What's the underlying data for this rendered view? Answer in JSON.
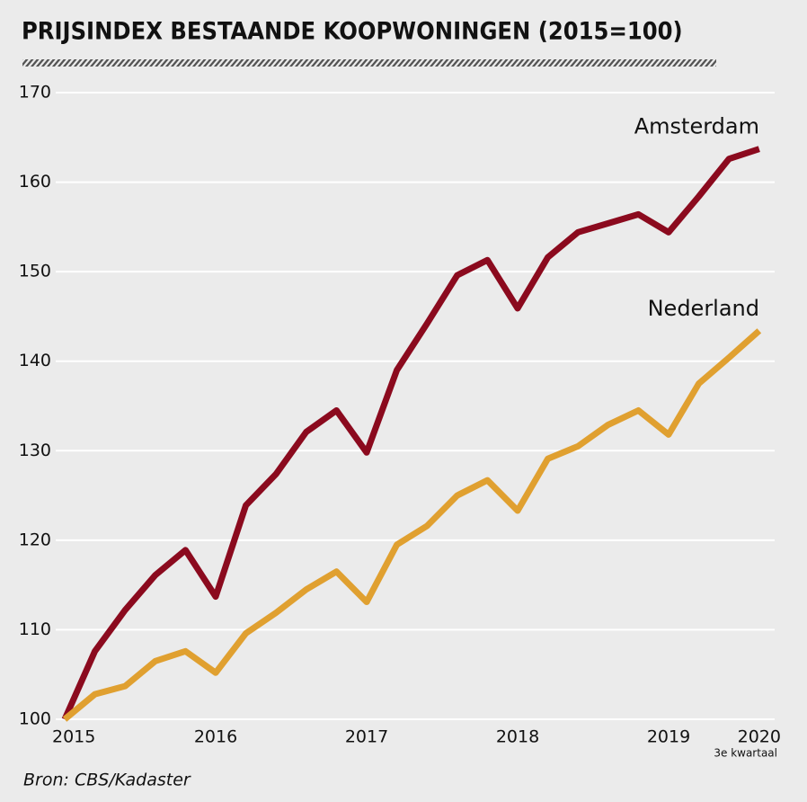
{
  "chart_data": {
    "type": "line",
    "title": "PRIJSINDEX BESTAANDE KOOPWONINGEN (2015=100)",
    "source": "Bron: CBS/Kadaster",
    "annotation": "3e kwartaal",
    "categories": [
      "2015",
      null,
      null,
      null,
      null,
      "2016",
      null,
      null,
      null,
      null,
      "2017",
      null,
      null,
      null,
      null,
      "2018",
      null,
      null,
      null,
      null,
      "2019",
      null,
      null,
      "2020"
    ],
    "series": [
      {
        "name": "Amsterdam",
        "color": "#8b0a1e",
        "values": [
          100,
          107.6,
          112.2,
          116.1,
          118.9,
          113.7,
          123.9,
          127.4,
          132.1,
          134.5,
          129.8,
          139.0,
          144.2,
          149.6,
          151.3,
          145.9,
          151.6,
          154.4,
          155.4,
          156.4,
          154.4,
          158.4,
          162.6,
          163.7
        ]
      },
      {
        "name": "Nederland",
        "color": "#e0a030",
        "values": [
          100,
          102.8,
          103.7,
          106.5,
          107.6,
          105.2,
          109.6,
          111.9,
          114.5,
          116.5,
          113.1,
          119.5,
          121.6,
          125.0,
          126.7,
          123.3,
          129.1,
          130.5,
          132.9,
          134.5,
          131.8,
          137.5,
          140.4,
          143.4
        ]
      }
    ],
    "ylim": [
      100,
      170
    ],
    "yticks": [
      100,
      110,
      120,
      130,
      140,
      150,
      160,
      170
    ],
    "grid": true
  }
}
